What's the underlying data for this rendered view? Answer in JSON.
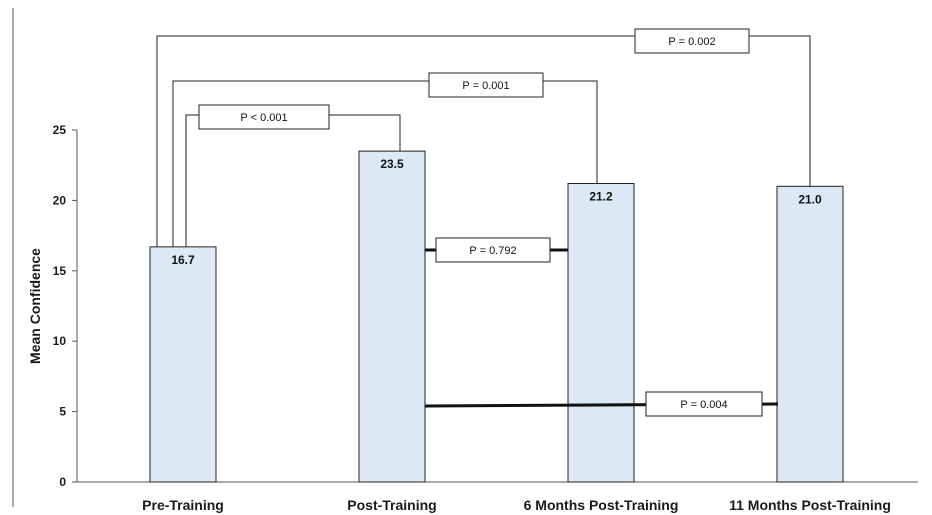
{
  "chart_data": {
    "type": "bar",
    "ylabel": "Mean Confidence",
    "ylim": [
      0,
      25
    ],
    "yticks": [
      "0",
      "5",
      "10",
      "15",
      "20",
      "25"
    ],
    "categories": [
      "Pre-Training",
      "Post-Training",
      "6 Months Post-Training",
      "11 Months Post-Training"
    ],
    "values": [
      16.7,
      23.5,
      21.2,
      21.0
    ],
    "value_labels": [
      "16.7",
      "23.5",
      "21.2",
      "21.0"
    ],
    "bar_color": "#dce8f3",
    "grid": false,
    "comparisons": [
      {
        "from": "Pre-Training",
        "to": "Post-Training",
        "label": "P < 0.001"
      },
      {
        "from": "Pre-Training",
        "to": "6 Months Post-Training",
        "label": "P = 0.001"
      },
      {
        "from": "Pre-Training",
        "to": "11 Months Post-Training",
        "label": "P = 0.002"
      },
      {
        "from": "Post-Training",
        "to": "6 Months Post-Training",
        "label": "P = 0.792"
      },
      {
        "from": "Post-Training",
        "to": "11 Months Post-Training",
        "label": "P = 0.004"
      }
    ]
  }
}
